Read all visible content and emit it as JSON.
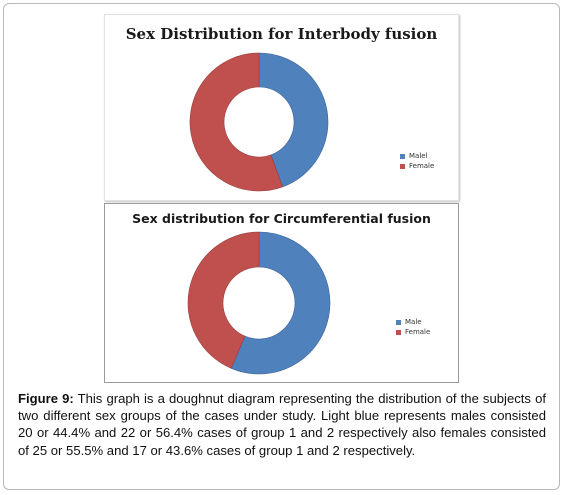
{
  "colors": {
    "male": "#4f81bd",
    "female": "#c0504d",
    "male_dark": "#3c6596",
    "female_dark": "#973f3d"
  },
  "chart_data": [
    {
      "type": "pie",
      "title": "Sex Distribution for Interbody fusion",
      "categories": [
        "Malel",
        "Female"
      ],
      "values": [
        44.4,
        55.5
      ],
      "legend_position": "right"
    },
    {
      "type": "pie",
      "title": "Sex distribution for Circumferential fusion",
      "categories": [
        "Male",
        "Female"
      ],
      "values": [
        56.4,
        43.6
      ],
      "legend_position": "right"
    }
  ],
  "caption": {
    "label": "Figure 9:",
    "text": "This graph is a doughnut diagram representing the distribution of the subjects of two different sex groups of the cases under study. Light blue represents males consisted 20 or 44.4% and 22 or 56.4% cases of group 1 and 2 respectively also females consisted of 25 or 55.5% and 17 or 43.6% cases of group 1 and 2 respectively."
  }
}
